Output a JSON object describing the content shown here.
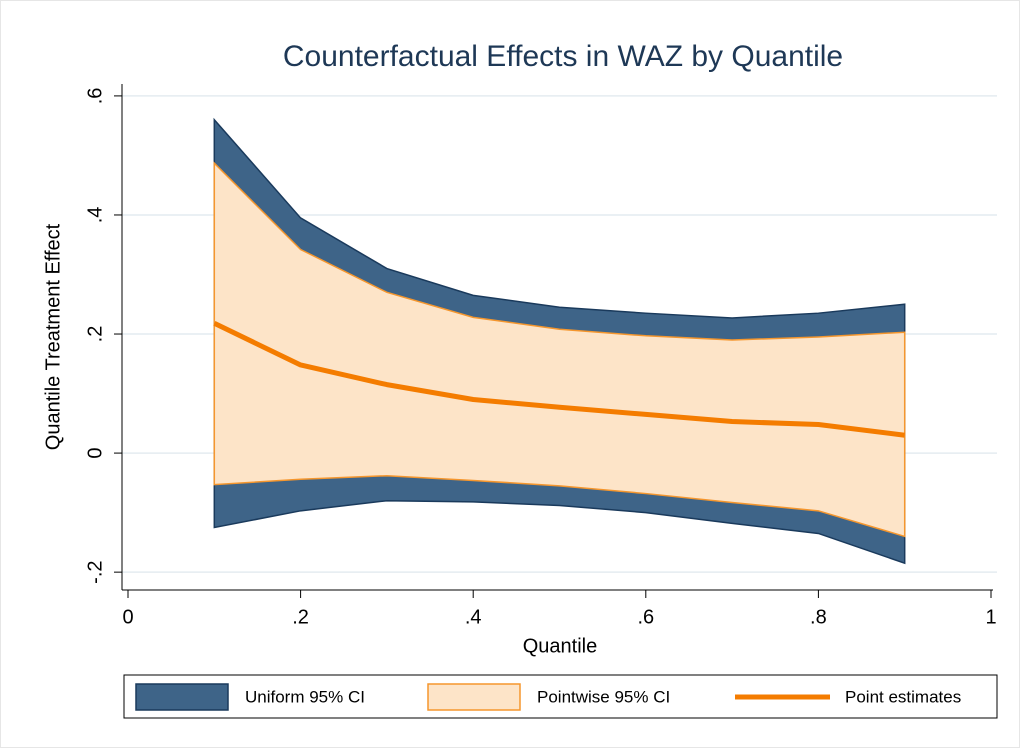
{
  "chart_data": {
    "type": "band",
    "title": "Counterfactual Effects in WAZ by Quantile",
    "xlabel": "Quantile",
    "ylabel": "Quantile Treatment Effect",
    "x": [
      0.1,
      0.2,
      0.3,
      0.4,
      0.5,
      0.6,
      0.7,
      0.8,
      0.9
    ],
    "xlim": [
      0,
      1
    ],
    "xticks": [
      0,
      {
        "value": 0.2,
        "label": ".2"
      },
      {
        "value": 0.4,
        "label": ".4"
      },
      {
        "value": 0.6,
        "label": ".6"
      },
      {
        "value": 0.8,
        "label": ".8"
      },
      1
    ],
    "ylim": [
      -0.23,
      0.62
    ],
    "yticks": [
      {
        "value": -0.2,
        "label": "-.2"
      },
      0,
      {
        "value": 0.2,
        "label": ".2"
      },
      {
        "value": 0.4,
        "label": ".4"
      },
      {
        "value": 0.6,
        "label": ".6"
      }
    ],
    "grid": true,
    "series": [
      {
        "name": "Uniform 95% CI",
        "kind": "area",
        "color": "#3e6488",
        "edge": "#1a3a5c",
        "upper": [
          0.56,
          0.395,
          0.31,
          0.265,
          0.245,
          0.235,
          0.227,
          0.235,
          0.25
        ],
        "lower": [
          -0.125,
          -0.097,
          -0.08,
          -0.082,
          -0.088,
          -0.1,
          -0.118,
          -0.135,
          -0.185
        ]
      },
      {
        "name": "Pointwise 95% CI",
        "kind": "area",
        "color": "#fde4c8",
        "edge": "#f5962d",
        "upper": [
          0.487,
          0.342,
          0.27,
          0.228,
          0.208,
          0.197,
          0.19,
          0.195,
          0.203
        ],
        "lower": [
          -0.053,
          -0.044,
          -0.038,
          -0.046,
          -0.055,
          -0.068,
          -0.083,
          -0.097,
          -0.14
        ]
      },
      {
        "name": "Point estimates",
        "kind": "line",
        "color": "#f47c00",
        "values": [
          0.218,
          0.148,
          0.115,
          0.09,
          0.077,
          0.065,
          0.053,
          0.048,
          0.03
        ]
      }
    ]
  }
}
